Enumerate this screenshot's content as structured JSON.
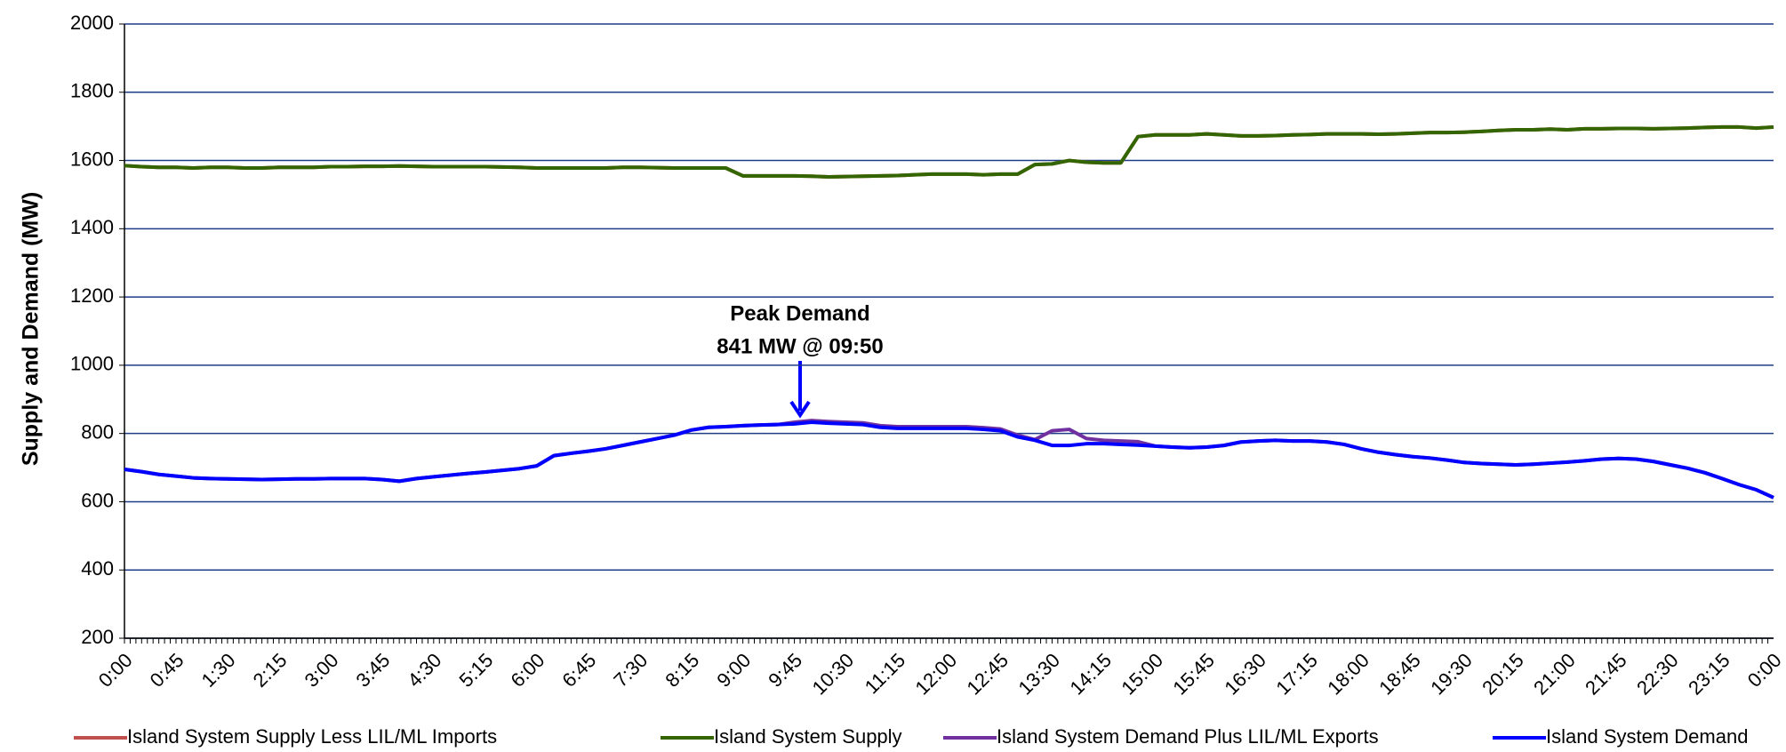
{
  "chart_data": {
    "type": "line",
    "y_label": "Supply and Demand (MW)",
    "annotations": [
      "Peak Demand",
      "841 MW @ 09:50"
    ],
    "categories": [
      "0:00",
      null,
      null,
      "0:45",
      null,
      null,
      "1:30",
      null,
      null,
      "2:15",
      null,
      null,
      "3:00",
      null,
      null,
      "3:45",
      null,
      null,
      "4:30",
      null,
      null,
      "5:15",
      null,
      null,
      "6:00",
      null,
      null,
      "6:45",
      null,
      null,
      "7:30",
      null,
      null,
      "8:15",
      null,
      null,
      "9:00",
      null,
      null,
      "9:45",
      null,
      null,
      "10:30",
      null,
      null,
      "11:15",
      null,
      null,
      "12:00",
      null,
      null,
      "12:45",
      null,
      null,
      "13:30",
      null,
      null,
      "14:15",
      null,
      null,
      "15:00",
      null,
      null,
      "15:45",
      null,
      null,
      "16:30",
      null,
      null,
      "17:15",
      null,
      null,
      "18:00",
      null,
      null,
      "18:45",
      null,
      null,
      "19:30",
      null,
      null,
      "20:15",
      null,
      null,
      "21:00",
      null,
      null,
      "21:45",
      null,
      null,
      "22:30",
      null,
      null,
      "23:15",
      null,
      null,
      "0:00"
    ],
    "ylim": [
      200,
      2000
    ],
    "yticks": [
      200,
      400,
      600,
      800,
      1000,
      1200,
      1400,
      1600,
      1800,
      2000
    ],
    "grid": true,
    "series": [
      {
        "name": "Island System Supply Less LIL/ML Imports",
        "color": "#c0504d",
        "values": [
          1585,
          1582,
          1580,
          1580,
          1578,
          1580,
          1580,
          1578,
          1578,
          1580,
          1580,
          1580,
          1582,
          1582,
          1583,
          1583,
          1584,
          1583,
          1582,
          1582,
          1582,
          1582,
          1581,
          1580,
          1578,
          1578,
          1578,
          1578,
          1578,
          1580,
          1580,
          1579,
          1578,
          1578,
          1578,
          1578,
          1555,
          1555,
          1555,
          1555,
          1554,
          1552,
          1553,
          1554,
          1555,
          1556,
          1558,
          1560,
          1560,
          1560,
          1558,
          1560,
          1560,
          1588,
          1590,
          1600,
          1595,
          1593,
          1593,
          1670,
          1675,
          1675,
          1675,
          1678,
          1675,
          1672,
          1672,
          1673,
          1675,
          1676,
          1678,
          1678,
          1678,
          1677,
          1678,
          1680,
          1682,
          1682,
          1683,
          1685,
          1688,
          1690,
          1690,
          1692,
          1690,
          1693,
          1693,
          1694,
          1694,
          1693,
          1694,
          1695,
          1697,
          1698,
          1698,
          1695,
          1698
        ]
      },
      {
        "name": "Island System Supply",
        "color": "#336600",
        "values": [
          1585,
          1582,
          1580,
          1580,
          1578,
          1580,
          1580,
          1578,
          1578,
          1580,
          1580,
          1580,
          1582,
          1582,
          1583,
          1583,
          1584,
          1583,
          1582,
          1582,
          1582,
          1582,
          1581,
          1580,
          1578,
          1578,
          1578,
          1578,
          1578,
          1580,
          1580,
          1579,
          1578,
          1578,
          1578,
          1578,
          1555,
          1555,
          1555,
          1555,
          1554,
          1552,
          1553,
          1554,
          1555,
          1556,
          1558,
          1560,
          1560,
          1560,
          1558,
          1560,
          1560,
          1588,
          1590,
          1600,
          1595,
          1593,
          1593,
          1670,
          1675,
          1675,
          1675,
          1678,
          1675,
          1672,
          1672,
          1673,
          1675,
          1676,
          1678,
          1678,
          1678,
          1677,
          1678,
          1680,
          1682,
          1682,
          1683,
          1685,
          1688,
          1690,
          1690,
          1692,
          1690,
          1693,
          1693,
          1694,
          1694,
          1693,
          1694,
          1695,
          1697,
          1698,
          1698,
          1695,
          1698
        ]
      },
      {
        "name": "Island System Demand Plus LIL/ML Exports",
        "color": "#7030a0",
        "values": [
          695,
          688,
          680,
          675,
          670,
          668,
          667,
          666,
          665,
          666,
          667,
          667,
          668,
          668,
          668,
          665,
          660,
          668,
          673,
          678,
          683,
          687,
          692,
          697,
          705,
          735,
          742,
          748,
          755,
          765,
          775,
          785,
          795,
          810,
          818,
          820,
          823,
          825,
          826,
          833,
          838,
          835,
          833,
          831,
          823,
          820,
          820,
          820,
          820,
          820,
          817,
          813,
          795,
          782,
          808,
          812,
          785,
          780,
          778,
          776,
          763,
          760,
          758,
          760,
          765,
          775,
          778,
          780,
          778,
          778,
          775,
          768,
          755,
          745,
          738,
          732,
          728,
          722,
          715,
          712,
          710,
          708,
          710,
          713,
          716,
          720,
          725,
          727,
          725,
          718,
          708,
          698,
          685,
          668,
          650,
          635,
          612
        ]
      },
      {
        "name": "Island System Demand",
        "color": "#0000ff",
        "values": [
          695,
          688,
          680,
          675,
          670,
          668,
          667,
          666,
          665,
          666,
          667,
          667,
          668,
          668,
          668,
          665,
          660,
          668,
          673,
          678,
          683,
          687,
          692,
          697,
          705,
          735,
          742,
          748,
          755,
          765,
          775,
          785,
          795,
          810,
          818,
          820,
          823,
          825,
          826,
          828,
          833,
          830,
          828,
          826,
          818,
          815,
          815,
          815,
          815,
          815,
          812,
          808,
          790,
          780,
          765,
          765,
          770,
          770,
          768,
          766,
          763,
          760,
          758,
          760,
          765,
          775,
          778,
          780,
          778,
          778,
          775,
          768,
          755,
          745,
          738,
          732,
          728,
          722,
          715,
          712,
          710,
          708,
          710,
          713,
          716,
          720,
          725,
          727,
          725,
          718,
          708,
          698,
          685,
          668,
          650,
          635,
          612
        ]
      }
    ]
  }
}
